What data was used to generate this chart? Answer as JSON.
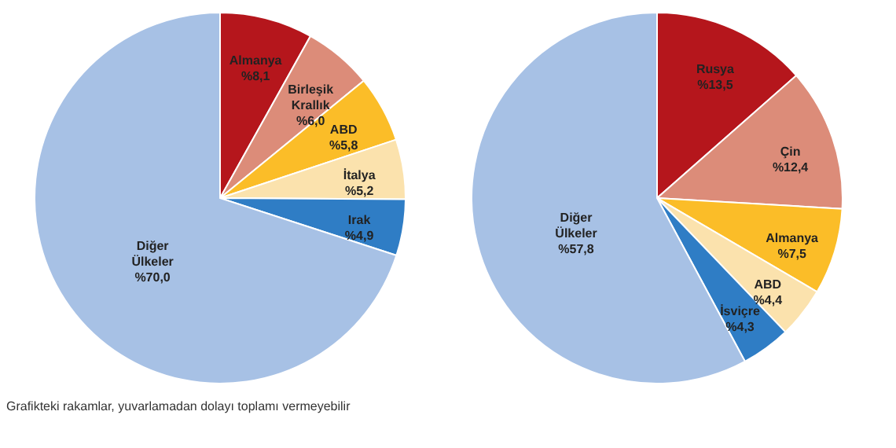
{
  "chart_data": [
    {
      "type": "pie",
      "categories": [
        "Almanya",
        "Birleşik Krallık",
        "ABD",
        "İtalya",
        "Irak",
        "Diğer Ülkeler"
      ],
      "values": [
        8.1,
        6.0,
        5.8,
        5.2,
        4.9,
        70.0
      ],
      "value_labels": [
        "%8,1",
        "%6,0",
        "%5,8",
        "%5,2",
        "%4,9",
        "%70,0"
      ],
      "colors": [
        "#b5161c",
        "#dc8c79",
        "#fbbd28",
        "#fbe2ad",
        "#2f7dc5",
        "#a7c1e5"
      ],
      "legend": false,
      "annotations": [
        "Grafikteki rakamlar, yuvarlamadan dolayı toplamı vermeyebilir"
      ]
    },
    {
      "type": "pie",
      "categories": [
        "Rusya",
        "Çin",
        "Almanya",
        "ABD",
        "İsviçre",
        "Diğer Ülkeler"
      ],
      "values": [
        13.5,
        12.4,
        7.5,
        4.4,
        4.3,
        57.8
      ],
      "value_labels": [
        "%13,5",
        "%12,4",
        "%7,5",
        "%4,4",
        "%4,3",
        "%57,8"
      ],
      "colors": [
        "#b5161c",
        "#dc8c79",
        "#fbbd28",
        "#fbe2ad",
        "#2f7dc5",
        "#a7c1e5"
      ],
      "legend": false
    }
  ]
}
